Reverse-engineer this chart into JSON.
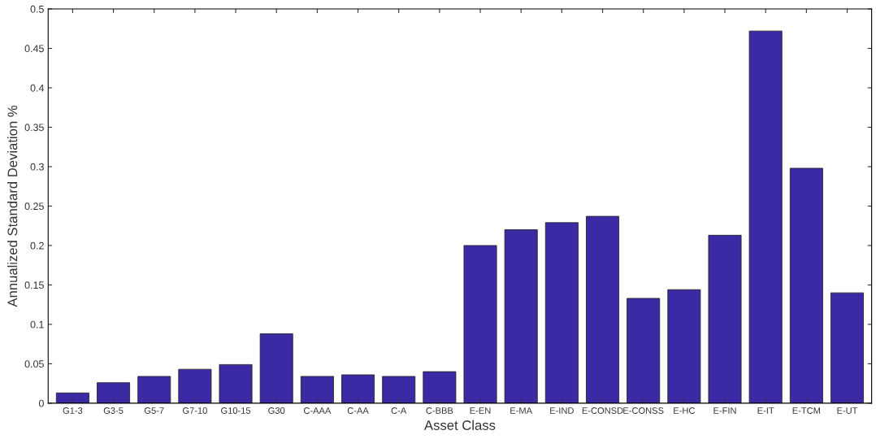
{
  "chart_data": {
    "type": "bar",
    "xlabel": "Asset Class",
    "ylabel": "Annualized Standard Deviation %",
    "categories": [
      "G1-3",
      "G3-5",
      "G5-7",
      "G7-10",
      "G10-15",
      "G30",
      "C-AAA",
      "C-AA",
      "C-A",
      "C-BBB",
      "E-EN",
      "E-MA",
      "E-IND",
      "E-CONSD",
      "E-CONSS",
      "E-HC",
      "E-FIN",
      "E-IT",
      "E-TCM",
      "E-UT"
    ],
    "values": [
      0.013,
      0.026,
      0.034,
      0.043,
      0.049,
      0.088,
      0.034,
      0.036,
      0.034,
      0.04,
      0.2,
      0.22,
      0.229,
      0.237,
      0.133,
      0.144,
      0.213,
      0.472,
      0.298,
      0.14
    ],
    "color": "#3a2ba5",
    "ylim": [
      0,
      0.5
    ],
    "yticks": [
      {
        "value": 0,
        "label": "0"
      },
      {
        "value": 0.05,
        "label": "0.05"
      },
      {
        "value": 0.1,
        "label": "0.1"
      },
      {
        "value": 0.15,
        "label": "0.15"
      },
      {
        "value": 0.2,
        "label": "0.2"
      },
      {
        "value": 0.25,
        "label": "0.25"
      },
      {
        "value": 0.3,
        "label": "0.3"
      },
      {
        "value": 0.35,
        "label": "0.35"
      },
      {
        "value": 0.4,
        "label": "0.4"
      },
      {
        "value": 0.45,
        "label": "0.45"
      },
      {
        "value": 0.5,
        "label": "0.5"
      }
    ],
    "grid": false
  }
}
